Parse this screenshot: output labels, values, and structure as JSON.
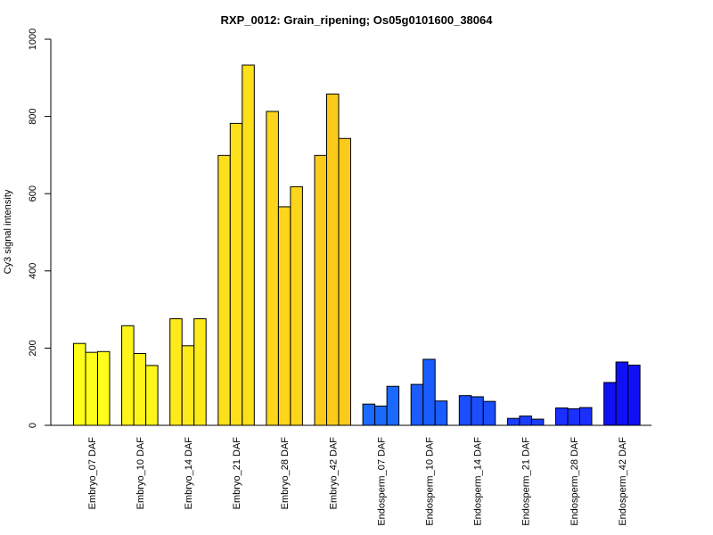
{
  "chart_data": {
    "type": "bar",
    "title": "RXP_0012: Grain_ripening; Os05g0101600_38064",
    "xlabel": "",
    "ylabel": "Cy3 signal intensity",
    "ylim": [
      0,
      1000
    ],
    "yticks": [
      0,
      200,
      400,
      600,
      800,
      1000
    ],
    "grid": false,
    "legend": "none",
    "categories": [
      "Embryo_07 DAF",
      "Embryo_10 DAF",
      "Embryo_14 DAF",
      "Embryo_21 DAF",
      "Embryo_28 DAF",
      "Embryo_42 DAF",
      "Endosperm_07 DAF",
      "Endosperm_10 DAF",
      "Endosperm_14 DAF",
      "Endosperm_21 DAF",
      "Endosperm_28 DAF",
      "Endosperm_42 DAF"
    ],
    "groups": [
      {
        "category": "Embryo_07 DAF",
        "color": "#FFFF1A",
        "values": [
          212,
          189,
          191
        ]
      },
      {
        "category": "Embryo_10 DAF",
        "color": "#FFF51A",
        "values": [
          258,
          186,
          155
        ]
      },
      {
        "category": "Embryo_14 DAF",
        "color": "#FEEA1A",
        "values": [
          276,
          206,
          276
        ]
      },
      {
        "category": "Embryo_21 DAF",
        "color": "#FDE01A",
        "values": [
          699,
          782,
          933
        ]
      },
      {
        "category": "Embryo_28 DAF",
        "color": "#FDD51A",
        "values": [
          813,
          566,
          618
        ]
      },
      {
        "category": "Embryo_42 DAF",
        "color": "#FCCB1A",
        "values": [
          699,
          858,
          743
        ]
      },
      {
        "category": "Endosperm_07 DAF",
        "color": "#1A6AFF",
        "values": [
          55,
          50,
          101
        ]
      },
      {
        "category": "Endosperm_10 DAF",
        "color": "#1A5CFF",
        "values": [
          106,
          171,
          63
        ]
      },
      {
        "category": "Endosperm_14 DAF",
        "color": "#1A4EFF",
        "values": [
          77,
          74,
          62
        ]
      },
      {
        "category": "Endosperm_21 DAF",
        "color": "#1A3FFF",
        "values": [
          18,
          24,
          16
        ]
      },
      {
        "category": "Endosperm_28 DAF",
        "color": "#1A30FF",
        "values": [
          45,
          43,
          46
        ]
      },
      {
        "category": "Endosperm_42 DAF",
        "color": "#1010F5",
        "values": [
          111,
          164,
          156
        ]
      }
    ]
  }
}
